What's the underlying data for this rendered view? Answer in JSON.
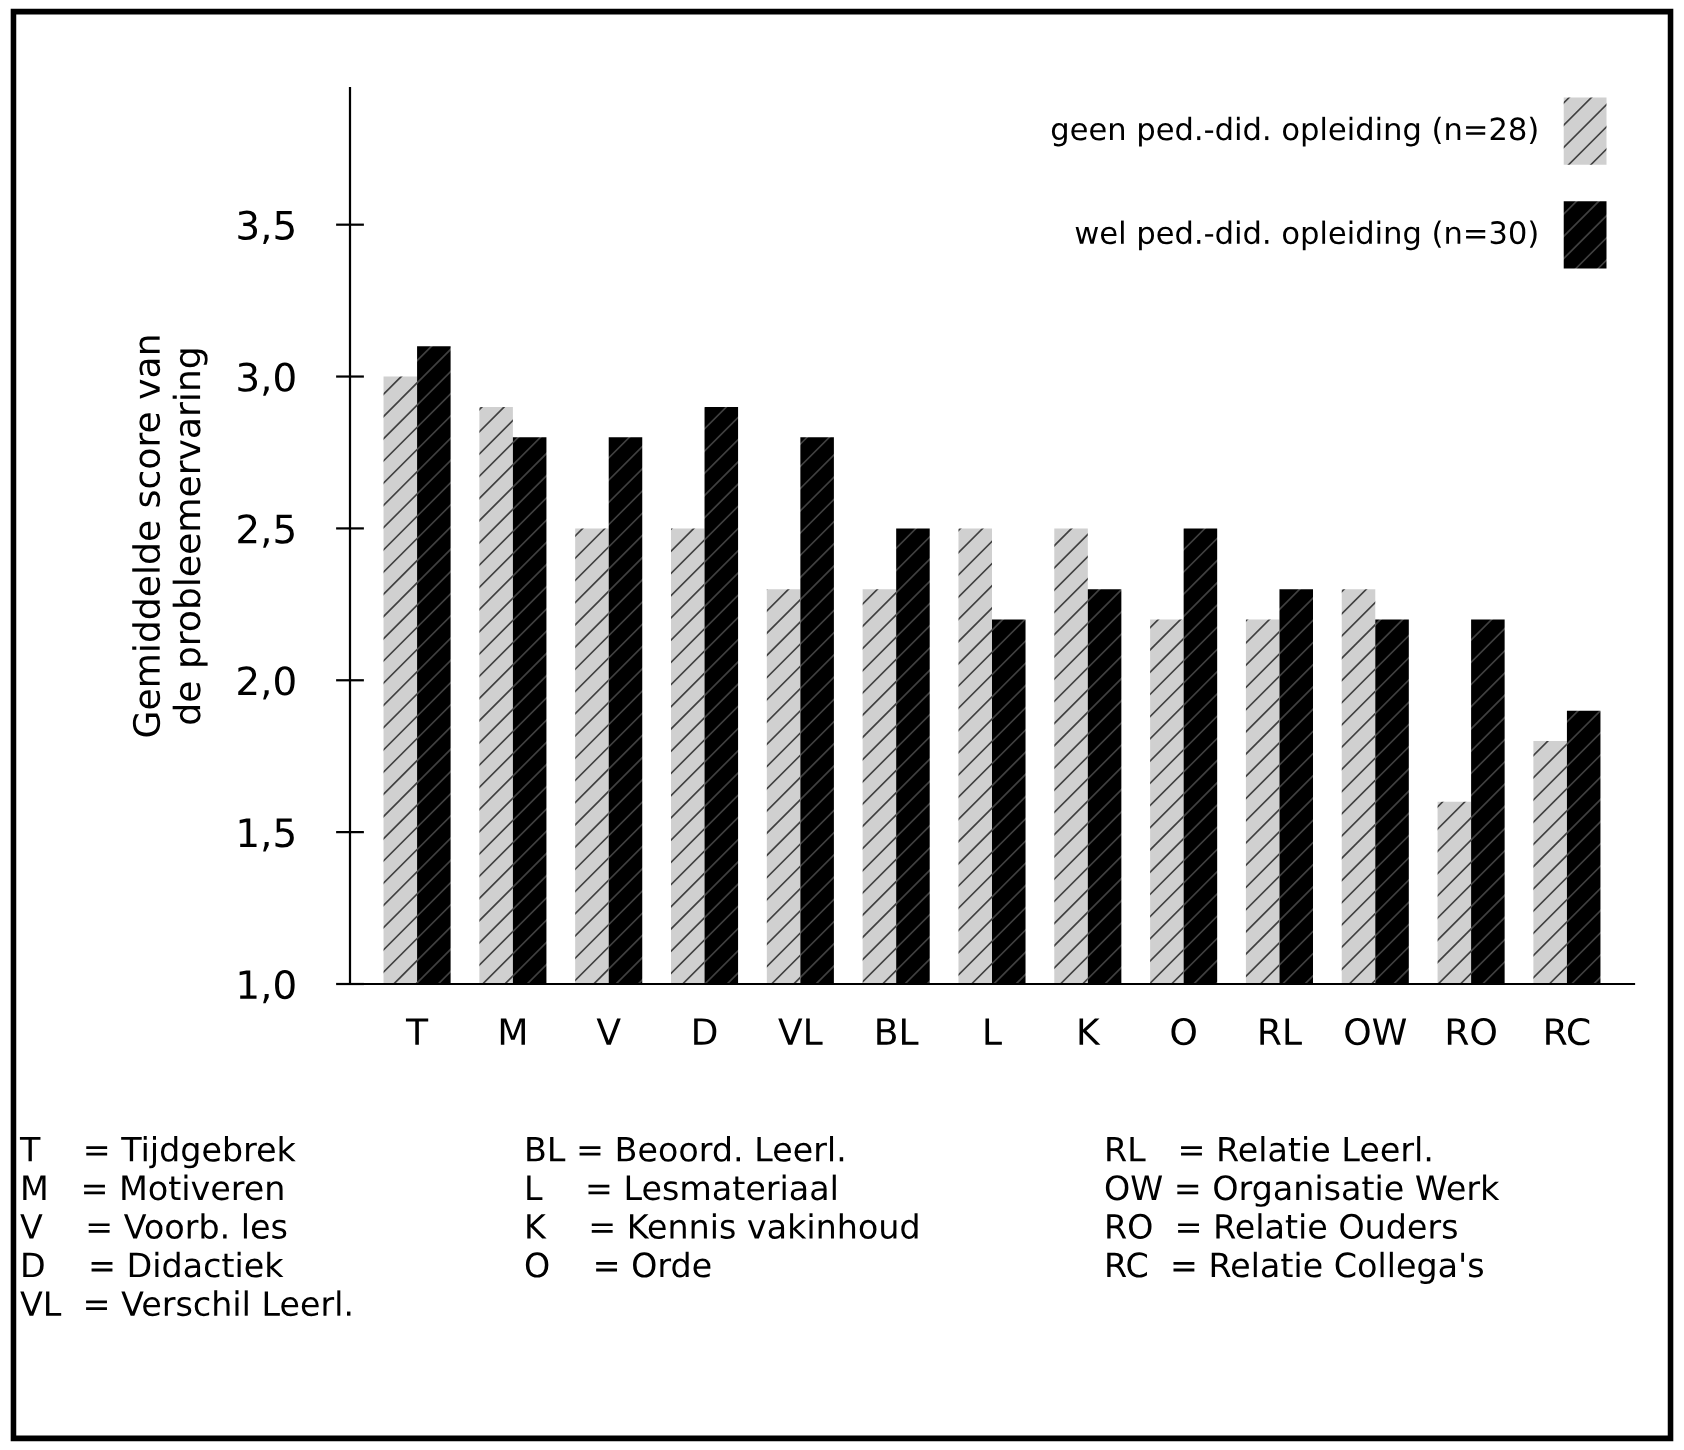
{
  "chart_data": {
    "type": "bar",
    "ylabel": "Gemiddelde score van\nde probleemervaring",
    "categories": [
      "T",
      "M",
      "V",
      "D",
      "VL",
      "BL",
      "L",
      "K",
      "O",
      "RL",
      "OW",
      "RO",
      "RC"
    ],
    "series": [
      {
        "name": "geen ped.-did. opleiding (n=28)",
        "color": "#d0d0d0",
        "values": [
          3.0,
          2.9,
          2.5,
          2.5,
          2.3,
          2.3,
          2.5,
          2.5,
          2.2,
          2.2,
          2.3,
          1.6,
          1.8
        ]
      },
      {
        "name": "wel ped.-did. opleiding (n=30)",
        "color": "#000000",
        "values": [
          3.1,
          2.8,
          2.8,
          2.9,
          2.8,
          2.5,
          2.2,
          2.3,
          2.5,
          2.3,
          2.2,
          2.2,
          1.9
        ]
      }
    ],
    "ylim": [
      1.0,
      3.95
    ],
    "yticks": [
      {
        "value": 1.0,
        "label": "1,0"
      },
      {
        "value": 1.5,
        "label": "1,5"
      },
      {
        "value": 2.0,
        "label": "2,0"
      },
      {
        "value": 2.5,
        "label": "2,5"
      },
      {
        "value": 3.0,
        "label": "3,0"
      },
      {
        "value": 3.5,
        "label": "3,5"
      }
    ],
    "grid": false,
    "legend": "top right",
    "annotations": [
      "T    = Tijdgebrek\nM   = Motiveren\nV    = Voorb. les\nD    = Didactiek\nVL  = Verschil Leerl.",
      "BL = Beoord. Leerl.\nL    = Lesmateriaal\nK    = Kennis vakinhoud\nO    = Orde",
      "RL   = Relatie Leerl.\nOW = Organisatie Werk\nRO  = Relatie Ouders\nRC  = Relatie Collega's"
    ]
  }
}
